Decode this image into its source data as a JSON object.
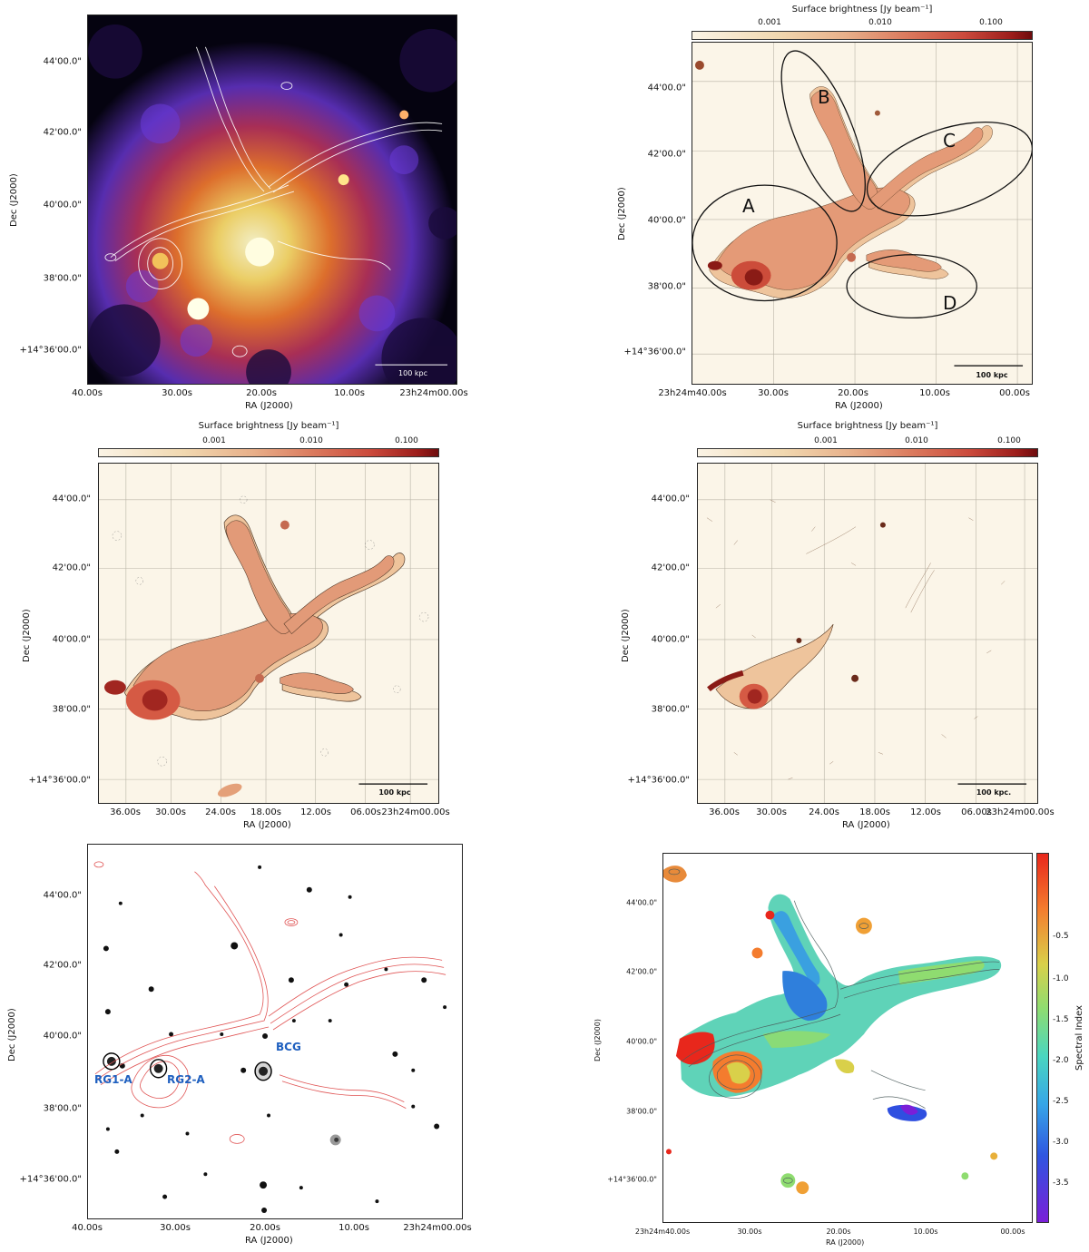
{
  "common": {
    "ra_label": "RA (J2000)",
    "dec_label": "Dec (J2000)",
    "sb_label": "Surface brightness [Jy beam⁻¹]",
    "dec_ticks": [
      "44'00.0\"",
      "42'00.0\"",
      "40'00.0\"",
      "38'00.0\"",
      "+14°36'00.0\""
    ],
    "cb_ticks": [
      "0.001",
      "0.010",
      "0.100"
    ],
    "scale_label": "100 kpc"
  },
  "panel1": {
    "ra_ticks": [
      "40.00s",
      "30.00s",
      "20.00s",
      "10.00s",
      "23h24m00.00s"
    ],
    "scale_label": "100 kpc"
  },
  "panel2": {
    "ra_ticks": [
      "23h24m40.00s",
      "30.00s",
      "20.00s",
      "10.00s",
      "00.00s"
    ],
    "regions": [
      "A",
      "B",
      "C",
      "D"
    ]
  },
  "panel3": {
    "ra_ticks": [
      "36.00s",
      "30.00s",
      "24.00s",
      "18.00s",
      "12.00s",
      "06.00s",
      "23h24m00.00s"
    ]
  },
  "panel4": {
    "ra_ticks": [
      "36.00s",
      "30.00s",
      "24.00s",
      "18.00s",
      "12.00s",
      "06.00s",
      "23h24m00.00s"
    ],
    "scale_label": "100 kpc."
  },
  "panel5": {
    "ra_ticks": [
      "40.00s",
      "30.00s",
      "20.00s",
      "10.00s",
      "23h24m00.00s"
    ],
    "sources": [
      "RG1-A",
      "RG2-A",
      "BCG"
    ]
  },
  "panel6": {
    "ra_ticks": [
      "23h24m40.00s",
      "30.00s",
      "20.00s",
      "10.00s",
      "00.00s"
    ],
    "cb_label": "Spectral Index",
    "cb_ticks": [
      "-0.5",
      "-1.0",
      "-1.5",
      "-2.0",
      "-2.5",
      "-3.0",
      "-3.5"
    ]
  }
}
